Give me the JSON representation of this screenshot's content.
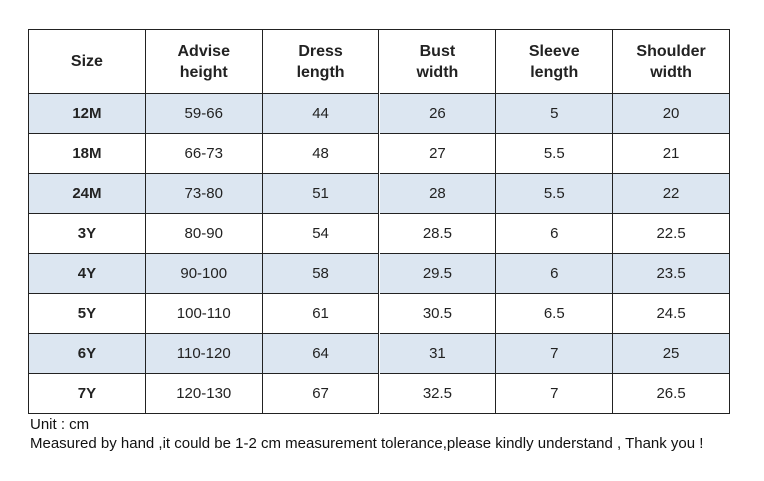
{
  "table": {
    "header": [
      [
        "Size"
      ],
      [
        "Advise",
        "height"
      ],
      [
        "Dress",
        "length"
      ],
      [
        "Bust",
        "width"
      ],
      [
        "Sleeve",
        "length"
      ],
      [
        "Shoulder",
        "width"
      ]
    ],
    "rows": [
      [
        "12M",
        "59-66",
        "44",
        "26",
        "5",
        "20"
      ],
      [
        "18M",
        "66-73",
        "48",
        "27",
        "5.5",
        "21"
      ],
      [
        "24M",
        "73-80",
        "51",
        "28",
        "5.5",
        "22"
      ],
      [
        "3Y",
        "80-90",
        "54",
        "28.5",
        "6",
        "22.5"
      ],
      [
        "4Y",
        "90-100",
        "58",
        "29.5",
        "6",
        "23.5"
      ],
      [
        "5Y",
        "100-110",
        "61",
        "30.5",
        "6.5",
        "24.5"
      ],
      [
        "6Y",
        "110-120",
        "64",
        "31",
        "7",
        "25"
      ],
      [
        "7Y",
        "120-130",
        "67",
        "32.5",
        "7",
        "26.5"
      ]
    ]
  },
  "notes": [
    "Unit : cm",
    "Measured by hand ,it could be 1-2 cm measurement tolerance,please kindly understand , Thank you !"
  ]
}
